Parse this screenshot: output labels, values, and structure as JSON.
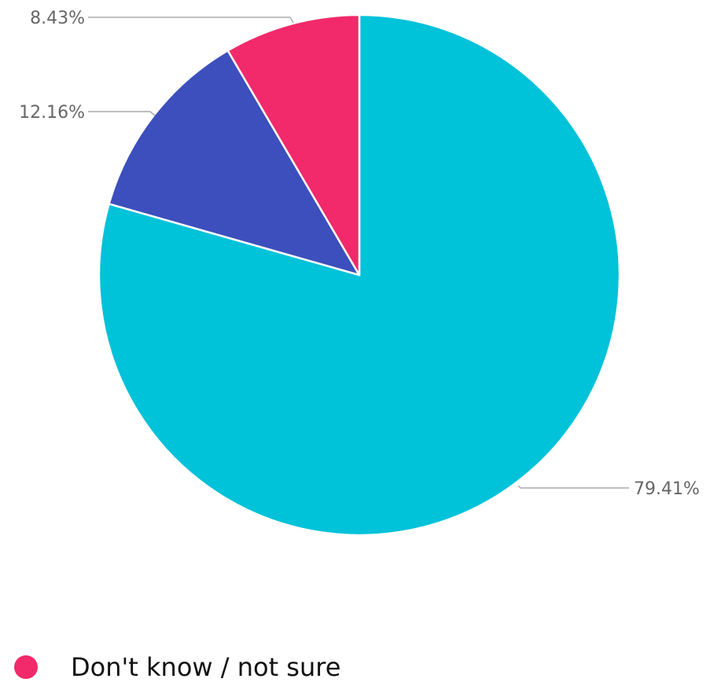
{
  "chart_data": {
    "type": "pie",
    "title": "",
    "slices": [
      {
        "label": "",
        "value": 79.41,
        "value_label": "79.41%",
        "color": "#00c2d9"
      },
      {
        "label": "",
        "value": 12.16,
        "value_label": "12.16%",
        "color": "#3c4fbc"
      },
      {
        "label": "Don't know / not sure",
        "value": 8.43,
        "value_label": "8.43%",
        "color": "#f2296a"
      }
    ],
    "start_angle": "12 o'clock",
    "direction": "clockwise",
    "legend": {
      "placement": "bottom-left",
      "entries": [
        {
          "label": "Don't know / not sure",
          "color": "#f2296a"
        }
      ]
    }
  }
}
